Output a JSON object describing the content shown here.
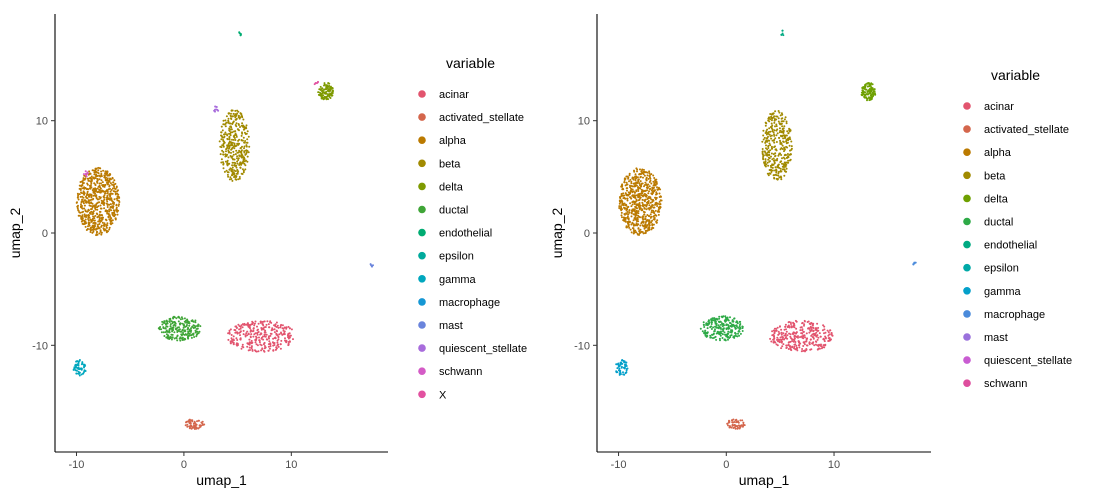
{
  "chart_data": [
    {
      "type": "scatter",
      "title": "",
      "xlabel": "umap_1",
      "ylabel": "umap_2",
      "xlim": [
        -12,
        19
      ],
      "ylim": [
        -19.5,
        19.5
      ],
      "xticks": [
        -10,
        0,
        10
      ],
      "yticks": [
        -10,
        0,
        10
      ],
      "grid": false,
      "legend": {
        "title": "variable",
        "position": "right"
      },
      "series": [
        {
          "name": "acinar",
          "color": "#E2546E"
        },
        {
          "name": "activated_stellate",
          "color": "#D4664C"
        },
        {
          "name": "alpha",
          "color": "#BB7A00"
        },
        {
          "name": "beta",
          "color": "#A18A00"
        },
        {
          "name": "delta",
          "color": "#7E9A00"
        },
        {
          "name": "ductal",
          "color": "#3FA537"
        },
        {
          "name": "endothelial",
          "color": "#00AC72"
        },
        {
          "name": "epsilon",
          "color": "#00AA9C"
        },
        {
          "name": "gamma",
          "color": "#00A7BE"
        },
        {
          "name": "macrophage",
          "color": "#1597D4"
        },
        {
          "name": "mast",
          "color": "#6A84DC"
        },
        {
          "name": "quiescent_stellate",
          "color": "#A86CDC"
        },
        {
          "name": "schwann",
          "color": "#D45BC6"
        },
        {
          "name": "X",
          "color": "#E251A0"
        }
      ],
      "clusters": [
        {
          "series": "acinar",
          "center": [
            7.2,
            -9.2
          ],
          "radius": [
            3.2,
            1.4
          ],
          "n": 320
        },
        {
          "series": "activated_stellate",
          "center": [
            1.0,
            -17.0
          ],
          "radius": [
            0.9,
            0.45
          ],
          "n": 55
        },
        {
          "series": "alpha",
          "center": [
            -8.0,
            2.8
          ],
          "radius": [
            2.0,
            3.0
          ],
          "n": 650
        },
        {
          "series": "beta",
          "center": [
            4.7,
            7.8
          ],
          "radius": [
            1.4,
            3.2
          ],
          "n": 360
        },
        {
          "series": "delta",
          "center": [
            13.2,
            12.6
          ],
          "radius": [
            0.7,
            0.8
          ],
          "n": 110
        },
        {
          "series": "ductal",
          "center": [
            -0.4,
            -8.5
          ],
          "radius": [
            2.0,
            1.1
          ],
          "n": 230
        },
        {
          "series": "endothelial",
          "center": [
            5.2,
            17.8
          ],
          "radius": [
            0.15,
            0.25
          ],
          "n": 6
        },
        {
          "series": "gamma",
          "center": [
            -9.7,
            -12.0
          ],
          "radius": [
            0.6,
            0.7
          ],
          "n": 55
        },
        {
          "series": "mast",
          "center": [
            17.5,
            -2.8
          ],
          "radius": [
            0.15,
            0.2
          ],
          "n": 5
        },
        {
          "series": "quiescent_stellate",
          "center": [
            3.0,
            11.0
          ],
          "radius": [
            0.2,
            0.35
          ],
          "n": 10
        },
        {
          "series": "schwann",
          "center": [
            -9.1,
            5.3
          ],
          "radius": [
            0.25,
            0.3
          ],
          "n": 8
        },
        {
          "series": "X",
          "center": [
            12.3,
            13.4
          ],
          "radius": [
            0.2,
            0.2
          ],
          "n": 5
        }
      ]
    },
    {
      "type": "scatter",
      "title": "",
      "xlabel": "umap_1",
      "ylabel": "umap_2",
      "xlim": [
        -12,
        19
      ],
      "ylim": [
        -19.5,
        19.5
      ],
      "xticks": [
        -10,
        0,
        10
      ],
      "yticks": [
        -10,
        0,
        10
      ],
      "grid": false,
      "legend": {
        "title": "variable",
        "position": "right"
      },
      "series": [
        {
          "name": "acinar",
          "color": "#E2546E"
        },
        {
          "name": "activated_stellate",
          "color": "#D4664C"
        },
        {
          "name": "alpha",
          "color": "#BB7A00"
        },
        {
          "name": "beta",
          "color": "#A18A00"
        },
        {
          "name": "delta",
          "color": "#6EA000"
        },
        {
          "name": "ductal",
          "color": "#2EAA47"
        },
        {
          "name": "endothelial",
          "color": "#00AA82"
        },
        {
          "name": "epsilon",
          "color": "#00A9A7"
        },
        {
          "name": "gamma",
          "color": "#04A0CA"
        },
        {
          "name": "macrophage",
          "color": "#4B8BDB"
        },
        {
          "name": "mast",
          "color": "#9A71DC"
        },
        {
          "name": "quiescent_stellate",
          "color": "#C95CD2"
        },
        {
          "name": "schwann",
          "color": "#DE4E9E"
        }
      ],
      "clusters": [
        {
          "series": "acinar",
          "center": [
            7.0,
            -9.2
          ],
          "radius": [
            3.0,
            1.4
          ],
          "n": 320
        },
        {
          "series": "activated_stellate",
          "center": [
            0.9,
            -17.0
          ],
          "radius": [
            0.9,
            0.45
          ],
          "n": 55
        },
        {
          "series": "alpha",
          "center": [
            -8.0,
            2.8
          ],
          "radius": [
            2.0,
            3.0
          ],
          "n": 650
        },
        {
          "series": "beta",
          "center": [
            4.7,
            7.8
          ],
          "radius": [
            1.4,
            3.2
          ],
          "n": 360
        },
        {
          "series": "delta",
          "center": [
            13.2,
            12.6
          ],
          "radius": [
            0.7,
            0.8
          ],
          "n": 110
        },
        {
          "series": "ductal",
          "center": [
            -0.4,
            -8.5
          ],
          "radius": [
            2.0,
            1.1
          ],
          "n": 230
        },
        {
          "series": "endothelial",
          "center": [
            5.2,
            17.8
          ],
          "radius": [
            0.15,
            0.25
          ],
          "n": 6
        },
        {
          "series": "gamma",
          "center": [
            -9.7,
            -12.0
          ],
          "radius": [
            0.6,
            0.7
          ],
          "n": 55
        },
        {
          "series": "macrophage",
          "center": [
            17.5,
            -2.8
          ],
          "radius": [
            0.15,
            0.2
          ],
          "n": 5
        }
      ]
    }
  ]
}
